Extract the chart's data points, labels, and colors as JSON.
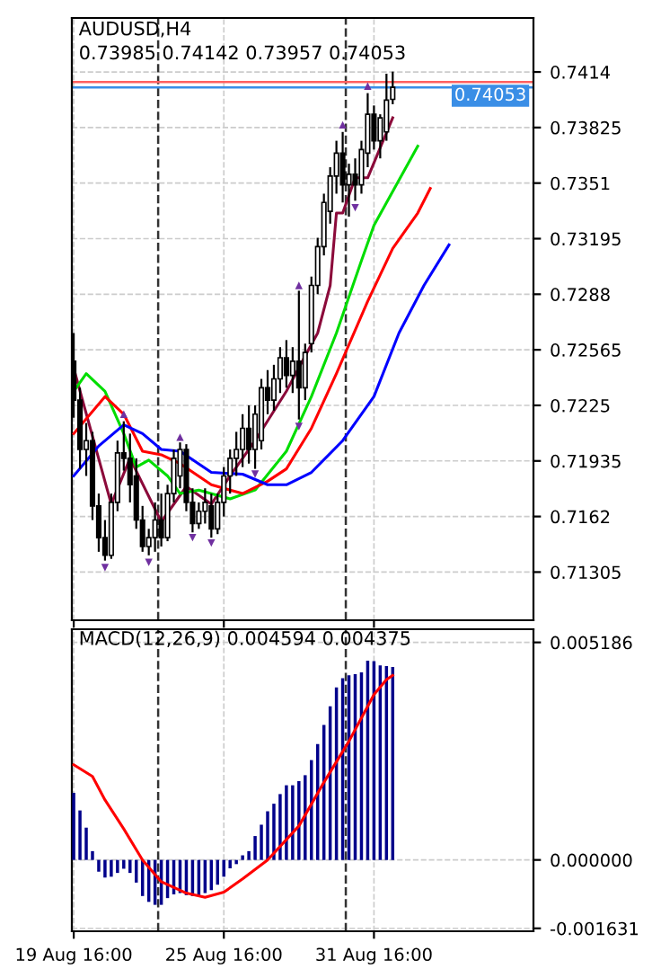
{
  "chart_data": [
    {
      "type": "candlestick",
      "title": "AUDUSD,H4",
      "subtitle": "0.73985 0.74142 0.73957 0.74053",
      "categories": [
        null,
        null,
        null,
        null,
        null,
        null,
        null,
        null,
        null,
        null,
        null,
        null,
        null,
        null,
        null,
        null,
        null,
        null,
        null,
        null,
        null,
        null,
        null,
        null,
        null,
        null,
        null,
        null,
        null,
        null,
        null,
        null,
        null,
        null,
        null,
        null,
        null,
        null,
        null,
        null,
        null,
        null,
        null,
        null,
        null,
        null,
        null,
        null,
        null,
        null,
        null,
        null,
        null,
        null,
        null,
        null,
        null,
        null,
        null,
        null,
        null,
        null,
        null,
        null,
        null,
        null,
        null,
        null,
        null,
        null,
        null,
        null,
        null,
        null
      ],
      "ohlc": [
        [
          0.725,
          0.7266,
          0.7218,
          0.7228
        ],
        [
          0.7228,
          0.7235,
          0.7189,
          0.72
        ],
        [
          0.72,
          0.7215,
          0.7185,
          0.7205
        ],
        [
          0.7205,
          0.721,
          0.716,
          0.7168
        ],
        [
          0.7168,
          0.7175,
          0.7142,
          0.715
        ],
        [
          0.715,
          0.716,
          0.7137,
          0.714
        ],
        [
          0.714,
          0.7175,
          0.7138,
          0.717
        ],
        [
          0.717,
          0.7205,
          0.7165,
          0.7198
        ],
        [
          0.7198,
          0.7216,
          0.7188,
          0.7195
        ],
        [
          0.7195,
          0.7209,
          0.717,
          0.718
        ],
        [
          0.7185,
          0.7195,
          0.7155,
          0.716
        ],
        [
          0.716,
          0.7168,
          0.7142,
          0.7145
        ],
        [
          0.7145,
          0.7155,
          0.714,
          0.715
        ],
        [
          0.715,
          0.717,
          0.7142,
          0.716
        ],
        [
          0.716,
          0.7175,
          0.7145,
          0.715
        ],
        [
          0.715,
          0.718,
          0.7148,
          0.7175
        ],
        [
          0.7175,
          0.72,
          0.717,
          0.7195
        ],
        [
          0.7185,
          0.7204,
          0.7178,
          0.72
        ],
        [
          0.72,
          0.7203,
          0.7165,
          0.717
        ],
        [
          0.717,
          0.7178,
          0.7153,
          0.7158
        ],
        [
          0.7158,
          0.717,
          0.7155,
          0.7165
        ],
        [
          0.7165,
          0.7178,
          0.7158,
          0.717
        ],
        [
          0.7168,
          0.7175,
          0.715,
          0.7155
        ],
        [
          0.7155,
          0.7175,
          0.7152,
          0.717
        ],
        [
          0.717,
          0.719,
          0.7162,
          0.7185
        ],
        [
          0.7185,
          0.72,
          0.7175,
          0.7195
        ],
        [
          0.7195,
          0.721,
          0.7185,
          0.72
        ],
        [
          0.72,
          0.722,
          0.719,
          0.7212
        ],
        [
          0.7212,
          0.7225,
          0.7192,
          0.72
        ],
        [
          0.72,
          0.7225,
          0.7189,
          0.722
        ],
        [
          0.7205,
          0.724,
          0.72,
          0.7235
        ],
        [
          0.7235,
          0.7245,
          0.722,
          0.7228
        ],
        [
          0.7228,
          0.7248,
          0.7222,
          0.724
        ],
        [
          0.724,
          0.7258,
          0.7232,
          0.7252
        ],
        [
          0.7252,
          0.7262,
          0.7235,
          0.7242
        ],
        [
          0.7242,
          0.7258,
          0.7232,
          0.725
        ],
        [
          0.725,
          0.729,
          0.7217,
          0.7235
        ],
        [
          0.7235,
          0.726,
          0.7228,
          0.7255
        ],
        [
          0.726,
          0.7298,
          0.7255,
          0.7293
        ],
        [
          0.7293,
          0.732,
          0.7288,
          0.7315
        ],
        [
          0.7315,
          0.7345,
          0.731,
          0.734
        ],
        [
          0.7335,
          0.736,
          0.7328,
          0.7355
        ],
        [
          0.7355,
          0.7375,
          0.7345,
          0.7368
        ],
        [
          0.7368,
          0.738,
          0.734,
          0.735
        ],
        [
          0.735,
          0.7362,
          0.7332,
          0.7356
        ],
        [
          0.7356,
          0.7365,
          0.7341,
          0.735
        ],
        [
          0.735,
          0.7375,
          0.7345,
          0.737
        ],
        [
          0.7368,
          0.7402,
          0.736,
          0.739
        ],
        [
          0.739,
          0.7395,
          0.737,
          0.7375
        ],
        [
          0.7375,
          0.739,
          0.7365,
          0.7388
        ],
        [
          0.738,
          0.7413,
          0.7375,
          0.7398
        ],
        [
          0.73985,
          0.74142,
          0.73957,
          0.74053
        ],
        null,
        null,
        null,
        null,
        null,
        null,
        null,
        null,
        null,
        null,
        null,
        null,
        null,
        null,
        null,
        null,
        null,
        null,
        null,
        null,
        null,
        null
      ],
      "series": [
        {
          "type": "line",
          "color": "#8b0a3a",
          "values": [
            0.7246,
            null,
            null,
            null,
            null,
            null,
            0.7169,
            null,
            null,
            0.7195,
            null,
            null,
            null,
            null,
            0.7159,
            null,
            null,
            null,
            0.7179,
            null,
            null,
            null,
            0.7169,
            null,
            null,
            0.7185,
            null,
            null,
            null,
            0.7205,
            null,
            null,
            null,
            null,
            0.7233,
            null,
            null,
            0.7253,
            null,
            0.7266,
            null,
            0.7293,
            0.7334,
            0.7334,
            null,
            0.7354,
            null,
            0.7354,
            null,
            0.7371,
            null,
            0.7388,
            null,
            null,
            null,
            null,
            null,
            null,
            null,
            null,
            null,
            null,
            null,
            null,
            null,
            null,
            null,
            null,
            null,
            null,
            null,
            null,
            null,
            null
          ]
        },
        {
          "type": "line",
          "color": "#00dd00",
          "values": [
            0.7233,
            null,
            0.7243,
            null,
            null,
            0.7233,
            null,
            null,
            0.7209,
            null,
            0.719,
            null,
            0.7194,
            null,
            null,
            0.7185,
            null,
            0.7175,
            null,
            null,
            0.7177,
            null,
            null,
            null,
            null,
            0.7172,
            null,
            null,
            null,
            0.7177,
            null,
            null,
            null,
            null,
            0.7199,
            null,
            null,
            null,
            0.723,
            null,
            null,
            null,
            0.7266,
            null,
            null,
            null,
            0.7307,
            null,
            0.7327,
            null,
            null,
            null,
            null,
            null,
            null,
            0.7372,
            null,
            null,
            null,
            null,
            null,
            null,
            null,
            null,
            null,
            null,
            null,
            null,
            null,
            null,
            null,
            null,
            null,
            null
          ]
        },
        {
          "type": "line",
          "color": "#ff0000",
          "values": [
            0.7209,
            null,
            null,
            null,
            null,
            0.723,
            null,
            null,
            0.722,
            null,
            null,
            0.7199,
            null,
            null,
            0.7197,
            null,
            null,
            0.7192,
            null,
            null,
            null,
            null,
            0.718,
            null,
            null,
            null,
            null,
            0.7175,
            null,
            null,
            null,
            0.7182,
            null,
            null,
            0.7189,
            null,
            null,
            null,
            0.7212,
            null,
            null,
            null,
            0.7243,
            null,
            null,
            null,
            null,
            0.7284,
            null,
            null,
            null,
            0.7314,
            null,
            null,
            null,
            0.7334,
            null,
            0.7348,
            null,
            null,
            null,
            null,
            null,
            null,
            null,
            null,
            null,
            null,
            null,
            null,
            null,
            null,
            null,
            null
          ]
        },
        {
          "type": "line",
          "color": "#0000ff",
          "values": [
            0.7185,
            null,
            null,
            null,
            0.7202,
            null,
            null,
            null,
            0.7214,
            null,
            null,
            0.7209,
            null,
            null,
            0.72,
            null,
            null,
            0.7199,
            null,
            null,
            null,
            null,
            0.7187,
            null,
            null,
            null,
            null,
            0.7186,
            null,
            null,
            null,
            0.718,
            null,
            null,
            0.718,
            null,
            null,
            null,
            0.7187,
            null,
            null,
            null,
            null,
            0.7205,
            null,
            null,
            null,
            null,
            0.723,
            null,
            null,
            null,
            0.7266,
            null,
            null,
            null,
            0.7293,
            null,
            null,
            null,
            0.7316,
            null,
            null,
            null,
            null,
            null,
            null,
            null,
            null,
            null,
            null,
            null,
            null,
            null
          ]
        },
        {
          "type": "scatter",
          "color": "#7030a0",
          "marker": "triangle",
          "values": [
            null,
            null,
            null,
            null,
            null,
            null,
            null,
            null,
            0.722,
            null,
            null,
            null,
            null,
            null,
            null,
            null,
            null,
            0.7207,
            null,
            null,
            null,
            null,
            null,
            null,
            null,
            null,
            null,
            null,
            null,
            null,
            null,
            null,
            null,
            null,
            null,
            null,
            0.7293,
            null,
            null,
            null,
            null,
            null,
            null,
            0.7384,
            null,
            null,
            null,
            0.7406,
            null,
            null,
            null,
            null,
            null,
            null,
            null,
            null,
            null,
            null,
            null,
            null,
            null,
            null,
            null,
            null,
            null,
            null,
            null,
            null,
            null,
            null,
            null,
            null,
            null,
            null
          ]
        },
        {
          "type": "scatter",
          "color": "#7030a0",
          "marker": "triangle_down",
          "values": [
            null,
            null,
            null,
            null,
            null,
            0.7133,
            null,
            null,
            null,
            null,
            null,
            null,
            0.7136,
            null,
            null,
            null,
            null,
            null,
            null,
            0.715,
            null,
            null,
            0.7147,
            null,
            null,
            null,
            null,
            null,
            null,
            0.7186,
            null,
            null,
            null,
            null,
            null,
            null,
            0.7213,
            null,
            null,
            null,
            null,
            null,
            null,
            null,
            null,
            0.7337,
            null,
            null,
            null,
            null,
            null,
            null,
            null,
            null,
            null,
            null,
            null,
            null,
            null,
            null,
            null,
            null,
            null,
            null,
            null,
            null,
            null,
            null,
            null,
            null,
            null,
            null,
            null,
            null
          ]
        }
      ],
      "ylim": [
        0.71032,
        0.74446
      ],
      "yticks": [
        0.7414,
        0.73825,
        0.7351,
        0.73195,
        0.7288,
        0.72565,
        0.7225,
        0.71935,
        0.7162,
        0.71305
      ],
      "tick_labels": "y",
      "grid": true,
      "ref_lines": [
        {
          "axis": "y",
          "value": 0.74083,
          "color": "#ff6060",
          "line_style": "solid"
        },
        {
          "axis": "y",
          "value": 0.74053,
          "label": "0.74053",
          "color": "#3a8ee6",
          "line_style": "solid"
        }
      ]
    },
    {
      "type": "bar",
      "title": "MACD(12,26,9) 0.004594 0.004375",
      "categories": [
        "19 Aug 16:00",
        null,
        null,
        null,
        null,
        null,
        null,
        null,
        null,
        null,
        null,
        null,
        null,
        null,
        null,
        null,
        null,
        null,
        null,
        null,
        null,
        null,
        null,
        null,
        "25 Aug 16:00",
        null,
        null,
        null,
        null,
        null,
        null,
        null,
        null,
        null,
        null,
        null,
        null,
        null,
        null,
        null,
        null,
        null,
        null,
        null,
        null,
        null,
        null,
        null,
        "31 Aug 16:00",
        null,
        null,
        null,
        null,
        null,
        null,
        null,
        null,
        null,
        null,
        null,
        null,
        null,
        null,
        null,
        null,
        null,
        null,
        null,
        null,
        null,
        null,
        null,
        null,
        null
      ],
      "color": "#00008b",
      "values": [
        0.0016,
        0.00118,
        0.00077,
        0.00021,
        -0.00028,
        -0.00042,
        -0.0004,
        -0.00031,
        -0.00021,
        -0.00031,
        -0.00054,
        -0.00086,
        -0.001,
        -0.00107,
        -0.00107,
        -0.00091,
        -0.00082,
        -0.00079,
        -0.00084,
        -0.00086,
        -0.00084,
        -0.00079,
        -0.00072,
        -0.00059,
        -0.0004,
        -0.0002,
        -0.0001,
        0.00011,
        0.00021,
        0.00057,
        0.00084,
        0.00116,
        0.00134,
        0.00157,
        0.00178,
        0.00178,
        0.00188,
        0.00202,
        0.00238,
        0.00276,
        0.00322,
        0.00366,
        0.00411,
        0.00433,
        0.0044,
        0.00443,
        0.00447,
        0.00475,
        0.00474,
        0.00464,
        0.00462,
        0.0046,
        null,
        null,
        null,
        null,
        null,
        null,
        null,
        null,
        null,
        null,
        null,
        null,
        null,
        null,
        null,
        null,
        null,
        null,
        null,
        null,
        null,
        null
      ],
      "series": [
        {
          "type": "line",
          "color": "#ff0000",
          "values": [
            0.00227,
            null,
            null,
            0.00199,
            null,
            0.00143,
            null,
            null,
            0.00074,
            null,
            null,
            0,
            null,
            null,
            -0.00052,
            null,
            null,
            null,
            -0.00079,
            null,
            null,
            -0.00089,
            null,
            null,
            -0.00077,
            null,
            null,
            -0.00045,
            null,
            null,
            null,
            0,
            null,
            null,
            null,
            null,
            0.00081,
            null,
            null,
            null,
            0.00185,
            null,
            null,
            null,
            0.00283,
            null,
            null,
            null,
            0.00394,
            null,
            0.0043,
            0.0044,
            null,
            null,
            null,
            null,
            null,
            null,
            null,
            null,
            null,
            null,
            null,
            null,
            null,
            null,
            null,
            null,
            null,
            null,
            null,
            null,
            null,
            null
          ]
        }
      ],
      "ylim": [
        -0.0017,
        0.0055
      ],
      "yticks": [
        {
          "value": 0.005186,
          "label": "0.005186"
        },
        {
          "value": 0,
          "label": "0.000000"
        },
        {
          "value": -0.001631,
          "label": "-0.001631"
        }
      ],
      "grid": true
    }
  ]
}
